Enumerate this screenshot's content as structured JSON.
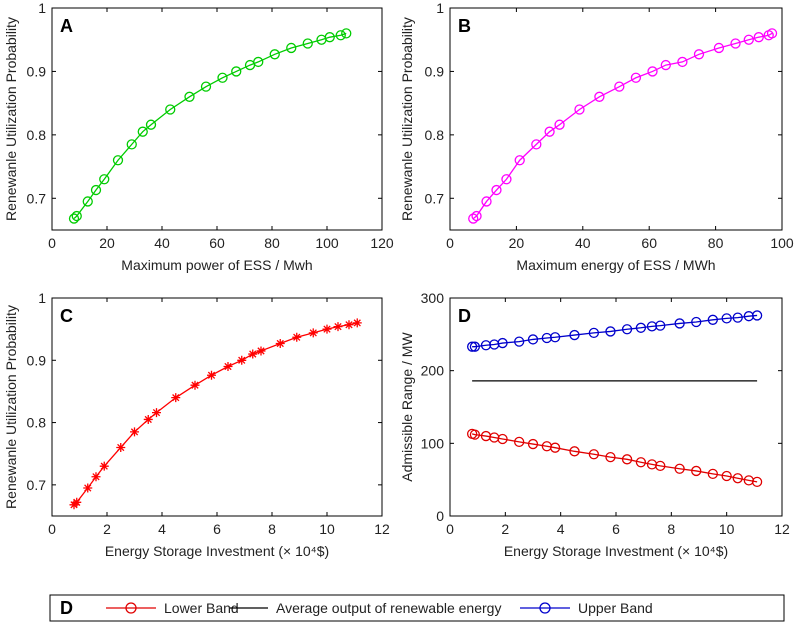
{
  "chart_data": [
    {
      "panel": "A",
      "type": "line",
      "marker": "circle",
      "color": "#00cc00",
      "title": "",
      "xlabel": "Maximum power of ESS / Mwh",
      "ylabel": "Renewanle Utilization Probability",
      "xlim": [
        0,
        120
      ],
      "ylim": [
        0.65,
        1
      ],
      "xticks": [
        0,
        20,
        40,
        60,
        80,
        100,
        120
      ],
      "yticks": [
        0.7,
        0.8,
        0.9,
        1
      ],
      "ytick_labels": [
        "0.7",
        "0.8",
        "0.9",
        "1"
      ],
      "x": [
        8,
        9,
        13,
        16,
        19,
        24,
        29,
        33,
        36,
        43,
        50,
        56,
        62,
        67,
        72,
        75,
        81,
        87,
        93,
        98,
        101,
        105,
        107
      ],
      "y": [
        0.668,
        0.672,
        0.695,
        0.713,
        0.73,
        0.76,
        0.785,
        0.805,
        0.816,
        0.84,
        0.86,
        0.876,
        0.89,
        0.9,
        0.91,
        0.915,
        0.927,
        0.937,
        0.944,
        0.95,
        0.954,
        0.957,
        0.96
      ]
    },
    {
      "panel": "B",
      "type": "line",
      "marker": "circle",
      "color": "#ff00ff",
      "title": "",
      "xlabel": "Maximum energy of ESS / MWh",
      "ylabel": "Renewanle Utilization Probability",
      "xlim": [
        0,
        100
      ],
      "ylim": [
        0.65,
        1
      ],
      "xticks": [
        0,
        20,
        40,
        60,
        80,
        100
      ],
      "yticks": [
        0.7,
        0.8,
        0.9,
        1
      ],
      "ytick_labels": [
        "0.7",
        "0.8",
        "0.9",
        "1"
      ],
      "x": [
        7,
        8,
        11,
        14,
        17,
        21,
        26,
        30,
        33,
        39,
        45,
        51,
        56,
        61,
        65,
        70,
        75,
        81,
        86,
        90,
        93,
        96,
        97
      ],
      "y": [
        0.668,
        0.672,
        0.695,
        0.713,
        0.73,
        0.76,
        0.785,
        0.805,
        0.816,
        0.84,
        0.86,
        0.876,
        0.89,
        0.9,
        0.91,
        0.915,
        0.927,
        0.937,
        0.944,
        0.95,
        0.954,
        0.957,
        0.96
      ]
    },
    {
      "panel": "C",
      "type": "line",
      "marker": "star",
      "color": "#ff0000",
      "title": "",
      "xlabel": "Energy Storage Investment (× 10⁴$)",
      "ylabel": "Renewanle Utilization Probability",
      "xlim": [
        0,
        12
      ],
      "ylim": [
        0.65,
        1
      ],
      "xticks": [
        0,
        2,
        4,
        6,
        8,
        10,
        12
      ],
      "yticks": [
        0.7,
        0.8,
        0.9,
        1
      ],
      "ytick_labels": [
        "0.7",
        "0.8",
        "0.9",
        "1"
      ],
      "x": [
        0.8,
        0.9,
        1.3,
        1.6,
        1.9,
        2.5,
        3.0,
        3.5,
        3.8,
        4.5,
        5.2,
        5.8,
        6.4,
        6.9,
        7.3,
        7.6,
        8.3,
        8.9,
        9.5,
        10.0,
        10.4,
        10.8,
        11.1
      ],
      "y": [
        0.668,
        0.672,
        0.695,
        0.713,
        0.73,
        0.76,
        0.785,
        0.805,
        0.816,
        0.84,
        0.86,
        0.876,
        0.89,
        0.9,
        0.91,
        0.915,
        0.927,
        0.937,
        0.944,
        0.95,
        0.954,
        0.957,
        0.96
      ]
    },
    {
      "panel": "D",
      "type": "line",
      "title": "",
      "xlabel": "Energy Storage Investment (× 10⁴$)",
      "ylabel": "Admissible Range / MW",
      "xlim": [
        0,
        12
      ],
      "ylim": [
        0,
        300
      ],
      "xticks": [
        0,
        2,
        4,
        6,
        8,
        10,
        12
      ],
      "yticks": [
        0,
        100,
        200,
        300
      ],
      "ytick_labels": [
        "0",
        "100",
        "200",
        "300"
      ],
      "x": [
        0.8,
        0.9,
        1.3,
        1.6,
        1.9,
        2.5,
        3.0,
        3.5,
        3.8,
        4.5,
        5.2,
        5.8,
        6.4,
        6.9,
        7.3,
        7.6,
        8.3,
        8.9,
        9.5,
        10.0,
        10.4,
        10.8,
        11.1
      ],
      "series": [
        {
          "name": "Lower Band",
          "color": "#e00000",
          "marker": "circle",
          "values": [
            113,
            112,
            110,
            108,
            106,
            102,
            99,
            96,
            94,
            89,
            85,
            81,
            78,
            74,
            71,
            69,
            65,
            62,
            58,
            55,
            52,
            49,
            47
          ]
        },
        {
          "name": "Average output of renewable energy",
          "color": "#000000",
          "marker": "none",
          "values": [
            186,
            186,
            186,
            186,
            186,
            186,
            186,
            186,
            186,
            186,
            186,
            186,
            186,
            186,
            186,
            186,
            186,
            186,
            186,
            186,
            186,
            186,
            186
          ]
        },
        {
          "name": "Upper Band",
          "color": "#0000cc",
          "marker": "circle",
          "values": [
            233,
            233,
            235,
            236,
            238,
            240,
            243,
            245,
            246,
            249,
            252,
            254,
            257,
            259,
            261,
            262,
            265,
            267,
            270,
            272,
            273,
            275,
            276
          ]
        }
      ]
    }
  ],
  "legend": {
    "label": "D",
    "entries": [
      {
        "name": "Lower Band",
        "color": "#e00000",
        "marker": "circle"
      },
      {
        "name": "Average output of renewable energy",
        "color": "#000000",
        "marker": "none"
      },
      {
        "name": "Upper Band",
        "color": "#0000cc",
        "marker": "circle"
      }
    ]
  }
}
